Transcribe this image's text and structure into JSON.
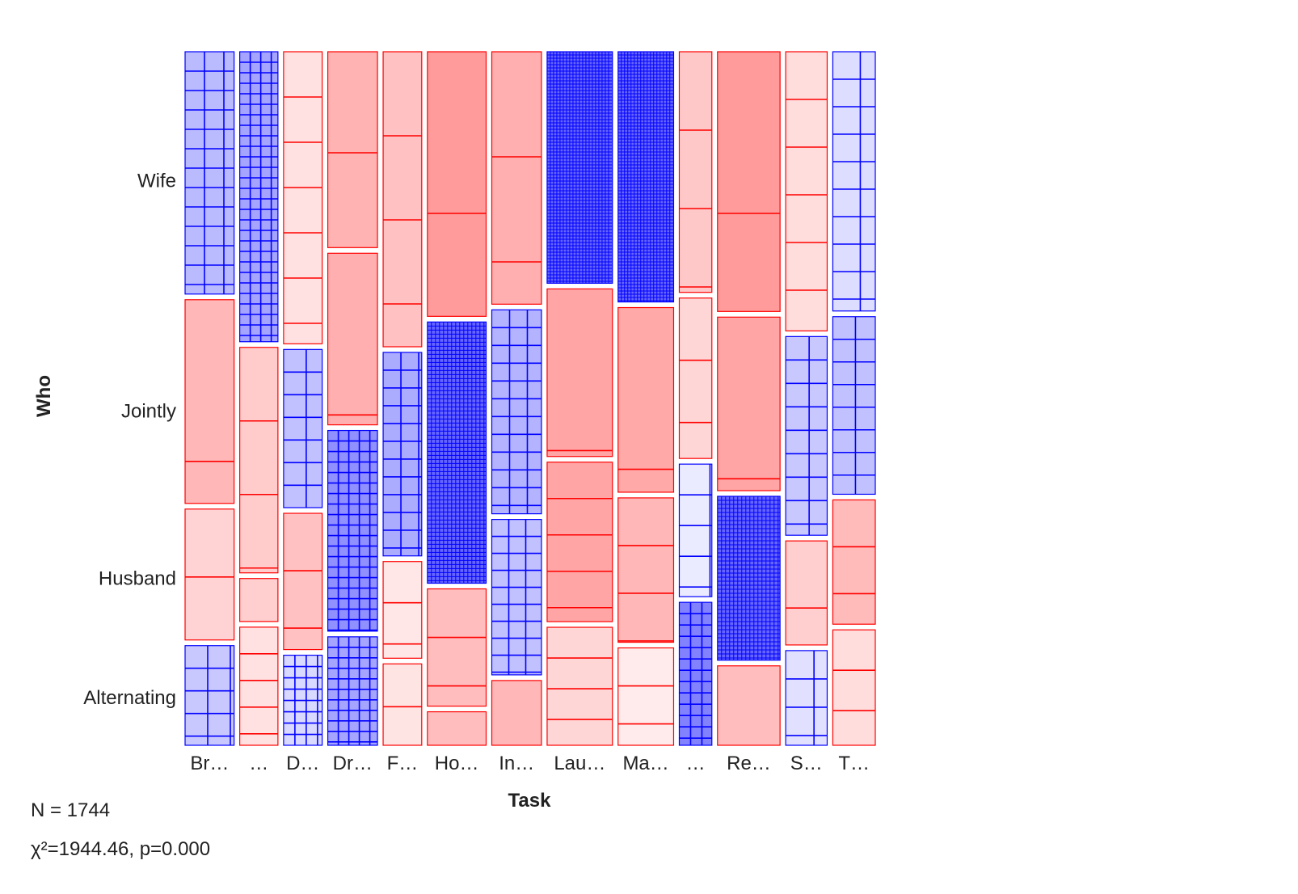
{
  "chart_data": {
    "type": "mosaic",
    "xlabel": "Task",
    "ylabel": "Who",
    "categories": [
      "Br…",
      "…",
      "D…",
      "Dr…",
      "F…",
      "Ho…",
      "In…",
      "Lau…",
      "Ma…",
      "…",
      "Re…",
      "S…",
      "T…"
    ],
    "rows": [
      "Wife",
      "Jointly",
      "Husband",
      "Alternating"
    ],
    "column_proportions": [
      0.0811,
      0.0632,
      0.0638,
      0.0822,
      0.0639,
      0.0972,
      0.0822,
      0.1081,
      0.0919,
      0.0539,
      0.1035,
      0.0686,
      0.0703
    ],
    "row_proportions": [
      [
        0.3582,
        0.3011,
        0.1935,
        0.1473
      ],
      [
        0.4286,
        0.3333,
        0.0635,
        0.1746
      ],
      [
        0.4317,
        0.2338,
        0.2014,
        0.1331
      ],
      [
        0.2895,
        0.2536,
        0.2966,
        0.1603
      ],
      [
        0.4361,
        0.3008,
        0.1429,
        0.1203
      ],
      [
        0.3911,
        0.3861,
        0.1733,
        0.0495
      ],
      [
        0.3731,
        0.3014,
        0.2297,
        0.0957
      ],
      [
        0.3422,
        0.2477,
        0.2357,
        0.1744
      ],
      [
        0.3698,
        0.2729,
        0.2134,
        0.1439
      ],
      [
        0.3557,
        0.2371,
        0.1959,
        0.2113
      ],
      [
        0.3839,
        0.2565,
        0.2422,
        0.1174
      ],
      [
        0.4126,
        0.2937,
        0.1538,
        0.1399
      ],
      [
        0.3832,
        0.2625,
        0.1837,
        0.1706
      ]
    ],
    "residual_sign": [
      [
        1,
        1,
        -1,
        -1,
        -1,
        -1,
        -1,
        1,
        1,
        -1,
        -1,
        -1,
        1
      ],
      [
        -1,
        -1,
        1,
        -1,
        1,
        1,
        1,
        -1,
        -1,
        -1,
        -1,
        1,
        1
      ],
      [
        -1,
        -1,
        -1,
        1,
        -1,
        -1,
        1,
        -1,
        -1,
        1,
        1,
        -1,
        -1
      ],
      [
        1,
        -1,
        1,
        1,
        -1,
        -1,
        -1,
        -1,
        -1,
        1,
        -1,
        1,
        -1
      ]
    ],
    "residual_level": [
      [
        0.4,
        0.55,
        0.12,
        0.45,
        0.35,
        0.62,
        0.48,
        1.0,
        1.0,
        0.3,
        0.62,
        0.15,
        0.15
      ],
      [
        0.42,
        0.28,
        0.35,
        0.48,
        0.5,
        1.0,
        0.45,
        0.55,
        0.52,
        0.2,
        0.55,
        0.3,
        0.35
      ],
      [
        0.22,
        0.25,
        0.35,
        0.7,
        0.08,
        0.38,
        0.35,
        0.55,
        0.42,
        0.05,
        1.0,
        0.25,
        0.4
      ],
      [
        0.3,
        0.12,
        0.18,
        0.55,
        0.1,
        0.38,
        0.42,
        0.2,
        0.05,
        0.8,
        0.38,
        0.12,
        0.15
      ]
    ],
    "grid_spacing": [
      [
        24,
        13,
        56,
        125,
        104,
        200,
        130,
        4,
        4,
        97,
        200,
        59,
        34
      ],
      [
        200,
        91,
        28,
        200,
        22,
        5,
        22,
        200,
        200,
        77,
        200,
        29,
        28
      ],
      [
        84,
        82,
        71,
        13,
        51,
        60,
        21,
        45,
        59,
        38,
        5,
        83,
        58
      ],
      [
        28,
        33,
        14,
        13,
        53,
        200,
        200,
        38,
        47,
        14,
        200,
        35,
        50
      ]
    ],
    "colors": {
      "positive": "#0000ff",
      "negative": "#ff0000"
    },
    "N_label": "N = 1744",
    "stat_label": "χ²=1944.46, p=0.000"
  }
}
